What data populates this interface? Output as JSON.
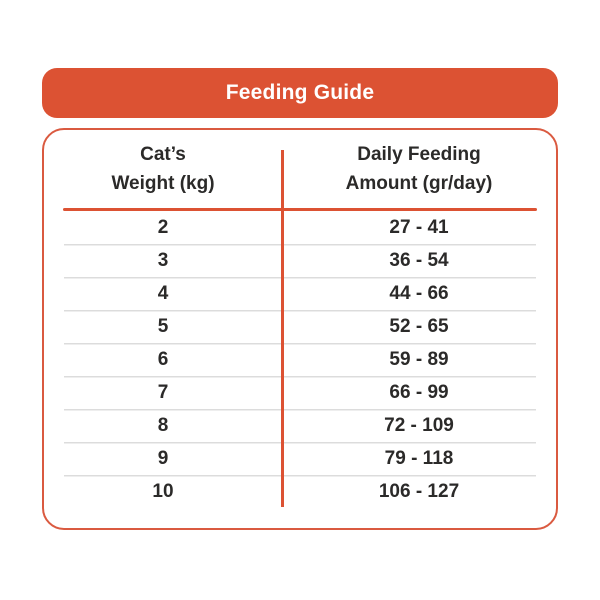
{
  "banner": {
    "title": "Feeding Guide"
  },
  "header": {
    "col1_line1": "Cat’s",
    "col1_line2": "Weight (kg)",
    "col2_line1": "Daily Feeding",
    "col2_line2": "Amount (gr/day)"
  },
  "colors": {
    "orange": "#DC5233",
    "text_dark": "#2B2A29",
    "row_separator": "#DCDCDC",
    "background": "#FFFFFF"
  },
  "chart_data": {
    "type": "table",
    "title": "Feeding Guide",
    "columns": [
      "Cat's Weight (kg)",
      "Daily Feeding Amount (gr/day)"
    ],
    "rows": [
      {
        "weight": "2",
        "amount": "27 - 41"
      },
      {
        "weight": "3",
        "amount": "36 - 54"
      },
      {
        "weight": "4",
        "amount": "44 - 66"
      },
      {
        "weight": "5",
        "amount": "52 - 65"
      },
      {
        "weight": "6",
        "amount": "59 - 89"
      },
      {
        "weight": "7",
        "amount": "66 - 99"
      },
      {
        "weight": "8",
        "amount": "72 - 109"
      },
      {
        "weight": "9",
        "amount": "79 - 118"
      },
      {
        "weight": "10",
        "amount": "106 - 127"
      }
    ]
  }
}
